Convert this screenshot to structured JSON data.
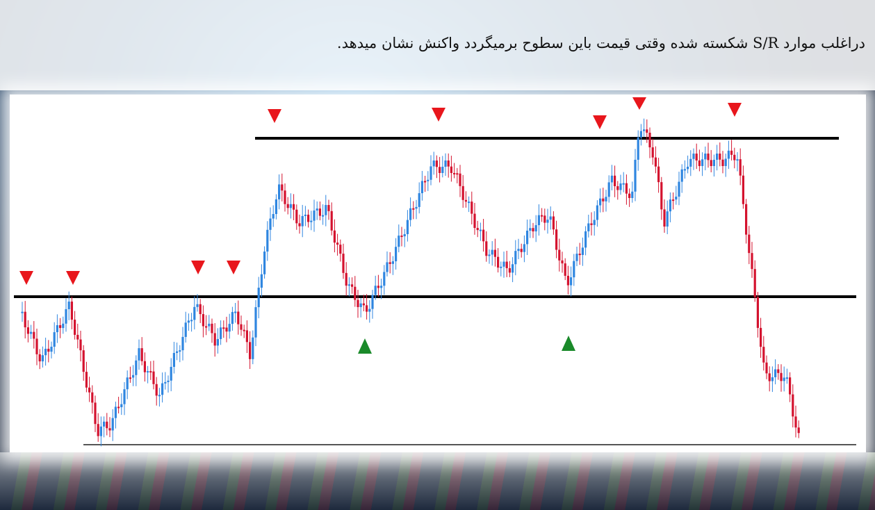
{
  "caption": "دراغلب موارد S/R شکسته شده وقتی قیمت باین سطوح برمیگردد واکنش نشان میدهد."
}
